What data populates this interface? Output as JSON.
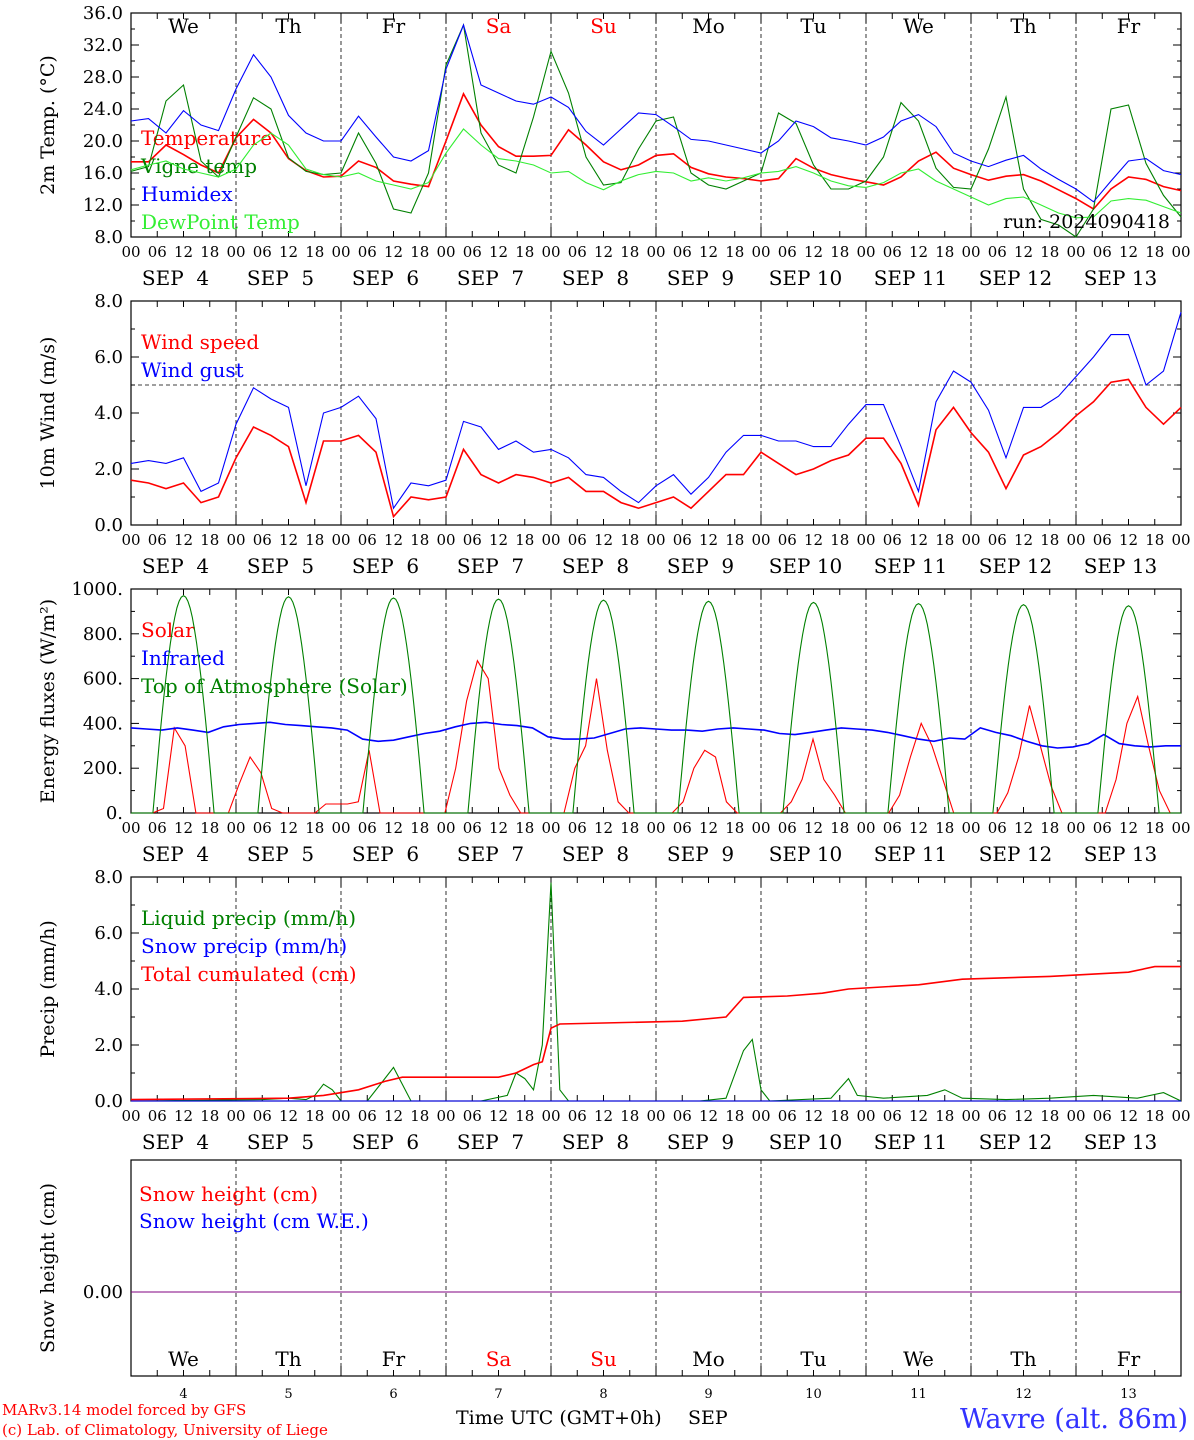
{
  "header": {
    "run_label": "run: 2024090418",
    "model_line": "MARv3.14 model forced by GFS",
    "credit_line": "(c) Lab. of Climatology, University of Liege",
    "location": "Wavre (alt. 86m)",
    "xlabel": "Time UTC (GMT+0h)",
    "month": "SEP"
  },
  "days": {
    "names": [
      "We",
      "Th",
      "Fr",
      "Sa",
      "Su",
      "Mo",
      "Tu",
      "We",
      "Th",
      "Fr"
    ],
    "weekend_index": [
      3,
      4
    ],
    "dates": [
      "SEP  4",
      "SEP  5",
      "SEP  6",
      "SEP  7",
      "SEP  8",
      "SEP  9",
      "SEP 10",
      "SEP 11",
      "SEP 12",
      "SEP 13"
    ],
    "date_numbers": [
      "4",
      "5",
      "6",
      "7",
      "8",
      "9",
      "10",
      "11",
      "12",
      "13"
    ],
    "hour_ticks": [
      "00",
      "06",
      "12",
      "18"
    ],
    "final_hour": "00"
  },
  "colors": {
    "red": "#ff0000",
    "green": "#008000",
    "blue": "#0000ff",
    "lightgreen": "#33ee33",
    "weekend": "#ff0000",
    "location": "#3333ff",
    "snowline": "#800080"
  },
  "chart_data": [
    {
      "id": "temperature",
      "type": "line",
      "ylabel": "2m Temp. (°C)",
      "ylim": [
        8,
        36
      ],
      "yticks": [
        "8.0",
        "12.0",
        "16.0",
        "20.0",
        "24.0",
        "28.0",
        "32.0",
        "36.0"
      ],
      "x_unit": "hours since SEP 4 00 UTC, 6-hourly",
      "series": [
        {
          "name": "Temperature",
          "color": "#ff0000",
          "values": [
            17.4,
            17.4,
            19.5,
            18.3,
            17.0,
            16.0,
            20.4,
            22.7,
            21.0,
            17.8,
            16.3,
            15.5,
            15.6,
            17.5,
            16.7,
            15.0,
            14.6,
            14.3,
            20.0,
            25.9,
            22.0,
            19.3,
            18.1,
            18.1,
            18.2,
            21.4,
            19.5,
            17.4,
            16.4,
            17.0,
            18.2,
            18.4,
            16.7,
            15.9,
            15.5,
            15.3,
            15.0,
            15.3,
            17.8,
            16.6,
            15.8,
            15.3,
            14.9,
            14.5,
            15.5,
            17.5,
            18.6,
            16.6,
            15.8,
            15.1,
            15.6,
            15.8,
            15.0,
            13.9,
            12.8,
            11.5,
            14.0,
            15.5,
            15.2,
            14.3,
            13.8
          ]
        },
        {
          "name": "Vigne temp",
          "color": "#008000",
          "values": [
            16.2,
            16.8,
            25.0,
            27.0,
            17.5,
            15.5,
            20.5,
            25.4,
            24.0,
            17.9,
            16.2,
            15.8,
            16.0,
            21.0,
            17.2,
            11.5,
            11.0,
            16.0,
            29.5,
            34.5,
            21.0,
            17.0,
            16.0,
            23.0,
            31.2,
            26.0,
            18.0,
            14.5,
            14.8,
            19.0,
            22.5,
            23.0,
            16.0,
            14.5,
            14.0,
            15.0,
            16.0,
            23.5,
            22.2,
            17.0,
            14.0,
            14.0,
            15.0,
            18.0,
            24.8,
            22.5,
            16.6,
            14.2,
            14.0,
            19.0,
            25.5,
            14.0,
            10.2,
            9.5,
            8.0,
            11.5,
            24.0,
            24.5,
            17.2,
            13.2,
            10.5
          ]
        },
        {
          "name": "Humidex",
          "color": "#0000ff",
          "values": [
            22.5,
            22.8,
            21.0,
            23.8,
            22.0,
            21.3,
            26.5,
            30.8,
            28.0,
            23.2,
            21.0,
            20.0,
            20.0,
            23.1,
            20.5,
            18.0,
            17.5,
            18.8,
            29.0,
            34.5,
            27.0,
            26.0,
            25.0,
            24.6,
            25.5,
            24.2,
            21.2,
            19.5,
            21.5,
            23.5,
            23.3,
            21.8,
            20.2,
            20.0,
            19.5,
            19.0,
            18.5,
            20.0,
            22.5,
            21.8,
            20.4,
            20.0,
            19.5,
            20.5,
            22.5,
            23.3,
            21.8,
            18.5,
            17.5,
            16.8,
            17.6,
            18.2,
            16.5,
            15.2,
            14.0,
            12.4,
            15.0,
            17.5,
            17.8,
            16.3,
            15.8
          ]
        },
        {
          "name": "DewPoint Temp",
          "color": "#33ee33",
          "values": [
            16.4,
            17.0,
            17.5,
            16.5,
            16.0,
            15.5,
            16.5,
            19.5,
            21.0,
            19.5,
            16.5,
            15.8,
            15.5,
            16.0,
            15.0,
            14.5,
            14.0,
            14.8,
            18.5,
            21.5,
            19.5,
            17.8,
            17.5,
            17.0,
            16.0,
            16.2,
            14.8,
            13.9,
            15.0,
            15.8,
            16.2,
            16.0,
            15.0,
            15.4,
            15.0,
            15.4,
            16.0,
            16.2,
            16.8,
            16.0,
            15.0,
            14.4,
            14.2,
            14.8,
            16.0,
            16.5,
            15.0,
            14.0,
            13.0,
            12.0,
            12.8,
            13.0,
            12.0,
            11.0,
            10.4,
            10.5,
            12.5,
            12.8,
            12.6,
            11.8,
            11.0
          ]
        }
      ]
    },
    {
      "id": "wind",
      "type": "line",
      "ylabel": "10m Wind (m/s)",
      "ylim": [
        0,
        8
      ],
      "yticks": [
        "0.0",
        "2.0",
        "4.0",
        "6.0",
        "8.0"
      ],
      "reference_line": 5,
      "series": [
        {
          "name": "Wind speed",
          "color": "#ff0000",
          "values": [
            1.6,
            1.5,
            1.3,
            1.5,
            0.8,
            1.0,
            2.4,
            3.5,
            3.2,
            2.8,
            0.8,
            3.0,
            3.0,
            3.2,
            2.6,
            0.3,
            1.0,
            0.9,
            1.0,
            2.7,
            1.8,
            1.5,
            1.8,
            1.7,
            1.5,
            1.7,
            1.2,
            1.2,
            0.8,
            0.6,
            0.8,
            1.0,
            0.6,
            1.2,
            1.8,
            1.8,
            2.6,
            2.2,
            1.8,
            2.0,
            2.3,
            2.5,
            3.1,
            3.1,
            2.2,
            0.7,
            3.4,
            4.2,
            3.3,
            2.6,
            1.3,
            2.5,
            2.8,
            3.3,
            3.9,
            4.4,
            5.1,
            5.2,
            4.2,
            3.6,
            4.2
          ]
        },
        {
          "name": "Wind gust",
          "color": "#0000ff",
          "values": [
            2.2,
            2.3,
            2.2,
            2.4,
            1.2,
            1.5,
            3.6,
            4.9,
            4.5,
            4.2,
            1.4,
            4.0,
            4.2,
            4.6,
            3.8,
            0.6,
            1.5,
            1.4,
            1.6,
            3.7,
            3.5,
            2.7,
            3.0,
            2.6,
            2.7,
            2.4,
            1.8,
            1.7,
            1.2,
            0.8,
            1.4,
            1.8,
            1.1,
            1.7,
            2.6,
            3.2,
            3.2,
            3.0,
            3.0,
            2.8,
            2.8,
            3.6,
            4.3,
            4.3,
            2.8,
            1.2,
            4.4,
            5.5,
            5.1,
            4.1,
            2.4,
            4.2,
            4.2,
            4.6,
            5.3,
            6.0,
            6.8,
            6.8,
            5.0,
            5.5,
            7.6
          ]
        }
      ]
    },
    {
      "id": "energy",
      "type": "line",
      "ylabel": "Energy fluxes (W/m²)",
      "ylim": [
        0,
        1000
      ],
      "yticks": [
        "0.",
        "200.",
        "400.",
        "600.",
        "800.",
        "1000."
      ],
      "series": [
        {
          "name": "Solar",
          "color": "#ff0000",
          "values": [
            0,
            0,
            0,
            20,
            380,
            300,
            0,
            0,
            0,
            0,
            130,
            250,
            180,
            20,
            0,
            0,
            0,
            0,
            40,
            40,
            40,
            50,
            280,
            0,
            0,
            0,
            0,
            0,
            0,
            0,
            200,
            500,
            680,
            600,
            200,
            80,
            0,
            0,
            0,
            0,
            0,
            200,
            300,
            600,
            280,
            50,
            0,
            0,
            0,
            0,
            0,
            50,
            200,
            280,
            250,
            50,
            0,
            0,
            0,
            0,
            0,
            50,
            150,
            330,
            150,
            80,
            0,
            0,
            0,
            0,
            0,
            80,
            250,
            400,
            300,
            150,
            0,
            0,
            0,
            0,
            0,
            90,
            250,
            480,
            300,
            120,
            0,
            0,
            0,
            0,
            0,
            150,
            400,
            520,
            300,
            100,
            0,
            0
          ]
        },
        {
          "name": "Infrared",
          "color": "#0000ff",
          "values": [
            380,
            375,
            370,
            380,
            370,
            360,
            385,
            395,
            400,
            405,
            395,
            390,
            385,
            380,
            370,
            330,
            320,
            325,
            340,
            355,
            365,
            385,
            400,
            405,
            395,
            390,
            380,
            340,
            330,
            330,
            335,
            355,
            375,
            380,
            375,
            370,
            370,
            365,
            375,
            380,
            375,
            370,
            355,
            350,
            360,
            370,
            380,
            375,
            370,
            360,
            345,
            330,
            320,
            335,
            330,
            380,
            360,
            345,
            320,
            300,
            290,
            295,
            310,
            350,
            310,
            300,
            295,
            300,
            300
          ]
        },
        {
          "name": "Top of Atmosphere (Solar)",
          "color": "#008000",
          "daily_peak": [
            970,
            965,
            960,
            955,
            950,
            945,
            940,
            935,
            930,
            925
          ],
          "sunrise_hour": 5,
          "sunset_hour": 19
        }
      ]
    },
    {
      "id": "precip",
      "type": "line",
      "ylabel": "Precip (mm/h)",
      "ylim": [
        0,
        8
      ],
      "yticks": [
        "0.0",
        "2.0",
        "4.0",
        "6.0",
        "8.0"
      ],
      "series": [
        {
          "name": "Liquid precip (mm/h)",
          "color": "#008000",
          "points": [
            [
              0,
              0
            ],
            [
              30,
              0.05
            ],
            [
              36,
              0.1
            ],
            [
              40,
              0.05
            ],
            [
              42,
              0.2
            ],
            [
              44,
              0.6
            ],
            [
              46,
              0.4
            ],
            [
              48,
              0
            ],
            [
              54,
              0
            ],
            [
              58,
              0.8
            ],
            [
              60,
              1.2
            ],
            [
              62,
              0.6
            ],
            [
              64,
              0
            ],
            [
              80,
              0
            ],
            [
              86,
              0.2
            ],
            [
              88,
              1.0
            ],
            [
              90,
              0.8
            ],
            [
              92,
              0.4
            ],
            [
              94,
              2.0
            ],
            [
              96,
              7.8
            ],
            [
              98,
              0.4
            ],
            [
              100,
              0
            ],
            [
              130,
              0
            ],
            [
              136,
              0.1
            ],
            [
              140,
              1.8
            ],
            [
              142,
              2.2
            ],
            [
              144,
              0.4
            ],
            [
              146,
              0
            ],
            [
              160,
              0.1
            ],
            [
              164,
              0.8
            ],
            [
              166,
              0.2
            ],
            [
              172,
              0.1
            ],
            [
              182,
              0.2
            ],
            [
              186,
              0.4
            ],
            [
              190,
              0.1
            ],
            [
              200,
              0.05
            ],
            [
              210,
              0.1
            ],
            [
              220,
              0.2
            ],
            [
              230,
              0.1
            ],
            [
              236,
              0.3
            ],
            [
              240,
              0
            ]
          ]
        },
        {
          "name": "Snow precip (mm/h)",
          "color": "#0000ff",
          "points": [
            [
              0,
              0
            ],
            [
              240,
              0
            ]
          ]
        },
        {
          "name": "Total cumulated (cm)",
          "color": "#ff0000",
          "points": [
            [
              0,
              0.05
            ],
            [
              36,
              0.1
            ],
            [
              44,
              0.2
            ],
            [
              52,
              0.4
            ],
            [
              58,
              0.7
            ],
            [
              62,
              0.85
            ],
            [
              84,
              0.85
            ],
            [
              88,
              1.0
            ],
            [
              92,
              1.3
            ],
            [
              94,
              1.4
            ],
            [
              96,
              2.6
            ],
            [
              98,
              2.75
            ],
            [
              126,
              2.85
            ],
            [
              136,
              3.0
            ],
            [
              140,
              3.7
            ],
            [
              150,
              3.75
            ],
            [
              158,
              3.85
            ],
            [
              164,
              4.0
            ],
            [
              180,
              4.15
            ],
            [
              190,
              4.35
            ],
            [
              210,
              4.45
            ],
            [
              228,
              4.6
            ],
            [
              234,
              4.8
            ],
            [
              240,
              4.8
            ]
          ]
        }
      ]
    },
    {
      "id": "snow",
      "type": "line",
      "ylabel": "Snow height (cm)",
      "yticks": [
        "0.00"
      ],
      "series": [
        {
          "name": "Snow height (cm)",
          "color": "#ff0000",
          "points": [
            [
              0,
              0
            ],
            [
              240,
              0
            ]
          ]
        },
        {
          "name": "Snow height (cm W.E.)",
          "color": "#0000ff",
          "points": [
            [
              0,
              0
            ],
            [
              240,
              0
            ]
          ]
        }
      ]
    }
  ]
}
